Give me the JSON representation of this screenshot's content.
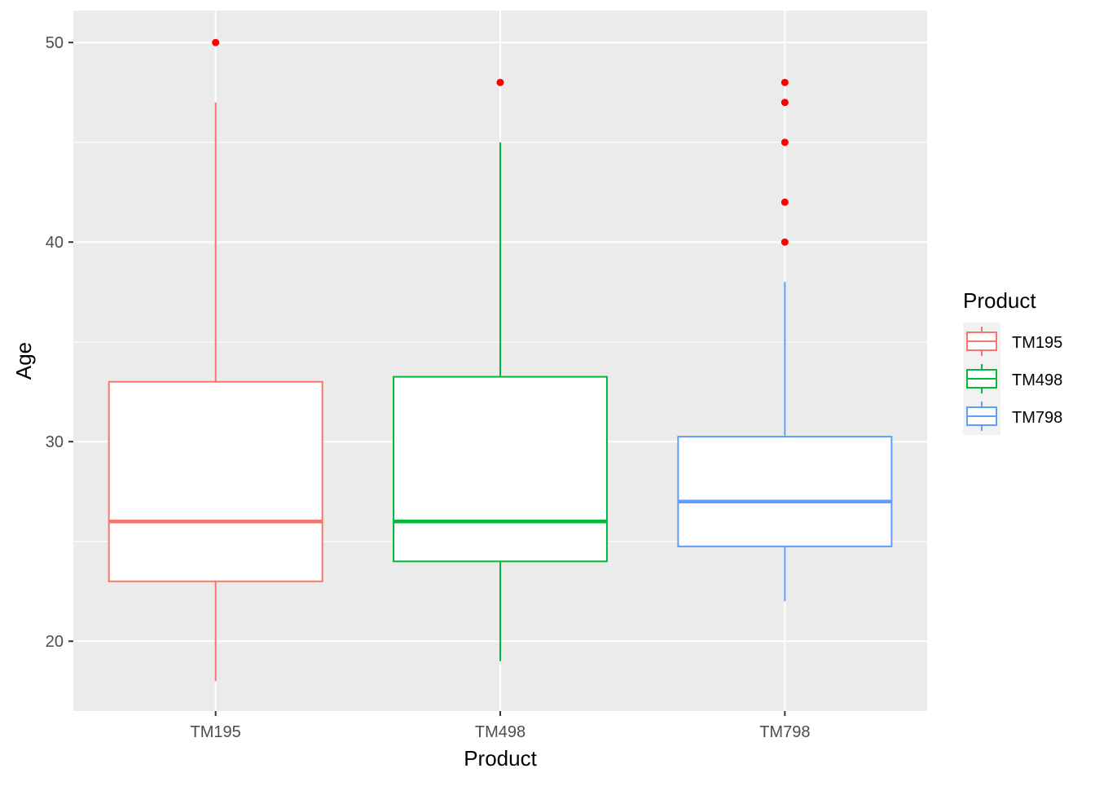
{
  "chart_data": {
    "type": "boxplot",
    "xlabel": "Product",
    "ylabel": "Age",
    "ylim": [
      16.5,
      51.6
    ],
    "y_ticks": [
      20,
      30,
      40,
      50
    ],
    "y_minor_ticks": [
      25,
      35,
      45
    ],
    "grid": true,
    "legend": {
      "title": "Product",
      "position": "right"
    },
    "categories": [
      "TM195",
      "TM498",
      "TM798"
    ],
    "series": [
      {
        "name": "TM195",
        "color": "#F8766D",
        "whisker_low": 18,
        "q1": 23,
        "median": 26,
        "q3": 33,
        "whisker_high": 47,
        "outliers": [
          50
        ]
      },
      {
        "name": "TM498",
        "color": "#00BA38",
        "whisker_low": 19,
        "q1": 24,
        "median": 26,
        "q3": 33.25,
        "whisker_high": 45,
        "outliers": [
          48
        ]
      },
      {
        "name": "TM798",
        "color": "#619CFF",
        "whisker_low": 22,
        "q1": 24.75,
        "median": 27,
        "q3": 30.25,
        "whisker_high": 38,
        "outliers": [
          40,
          42,
          45,
          47,
          48
        ]
      }
    ],
    "outlier_color": "#FF0000",
    "panel_background": "#EBEBEB",
    "grid_color": "#FFFFFF"
  }
}
